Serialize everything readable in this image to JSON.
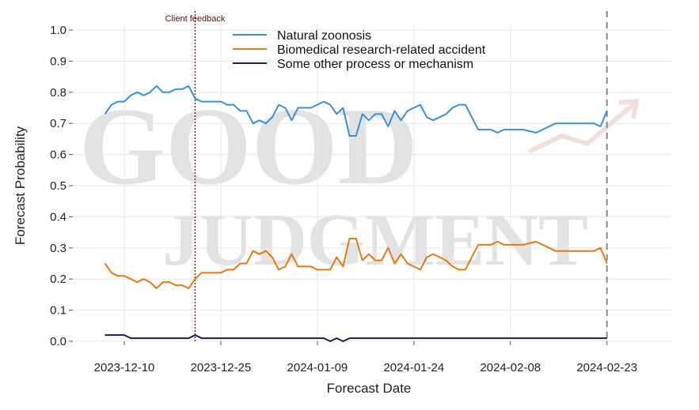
{
  "chart_data": {
    "type": "line",
    "title": "",
    "xlabel": "Forecast Date",
    "ylabel": "Forecast Probability",
    "ylim": [
      0,
      1.0
    ],
    "xlim": [
      "2023-12-02",
      "2024-03-04"
    ],
    "yticks": [
      "0.0",
      "0.1",
      "0.2",
      "0.3",
      "0.4",
      "0.5",
      "0.6",
      "0.7",
      "0.8",
      "0.9",
      "1.0"
    ],
    "xticks": [
      "2023-12-10",
      "2023-12-25",
      "2024-01-09",
      "2024-01-24",
      "2024-02-08",
      "2024-02-23"
    ],
    "grid": true,
    "legend_position": "top-center",
    "watermark": {
      "line1": "GOOD",
      "line2": "JUDGMENT",
      "color": "#e2e2e2"
    },
    "annotations": [
      {
        "label": "Client feedback",
        "x": "2023-12-21",
        "style": "dotted",
        "color": "#7a2530"
      },
      {
        "label": "",
        "x": "2024-02-23",
        "style": "dashed",
        "color": "#888888"
      }
    ],
    "series": [
      {
        "name": "Natural zoonosis",
        "color": "#3a8fd9",
        "points": [
          [
            "2023-12-07",
            0.73
          ],
          [
            "2023-12-08",
            0.76
          ],
          [
            "2023-12-09",
            0.77
          ],
          [
            "2023-12-10",
            0.77
          ],
          [
            "2023-12-11",
            0.79
          ],
          [
            "2023-12-12",
            0.8
          ],
          [
            "2023-12-13",
            0.79
          ],
          [
            "2023-12-14",
            0.8
          ],
          [
            "2023-12-15",
            0.82
          ],
          [
            "2023-12-16",
            0.8
          ],
          [
            "2023-12-17",
            0.8
          ],
          [
            "2023-12-18",
            0.81
          ],
          [
            "2023-12-19",
            0.81
          ],
          [
            "2023-12-20",
            0.82
          ],
          [
            "2023-12-21",
            0.78
          ],
          [
            "2023-12-22",
            0.77
          ],
          [
            "2023-12-23",
            0.77
          ],
          [
            "2023-12-24",
            0.77
          ],
          [
            "2023-12-25",
            0.77
          ],
          [
            "2023-12-26",
            0.76
          ],
          [
            "2023-12-27",
            0.76
          ],
          [
            "2023-12-28",
            0.74
          ],
          [
            "2023-12-29",
            0.74
          ],
          [
            "2023-12-30",
            0.7
          ],
          [
            "2023-12-31",
            0.71
          ],
          [
            "2024-01-01",
            0.7
          ],
          [
            "2024-01-02",
            0.72
          ],
          [
            "2024-01-03",
            0.76
          ],
          [
            "2024-01-04",
            0.75
          ],
          [
            "2024-01-05",
            0.71
          ],
          [
            "2024-01-06",
            0.75
          ],
          [
            "2024-01-07",
            0.75
          ],
          [
            "2024-01-08",
            0.75
          ],
          [
            "2024-01-09",
            0.76
          ],
          [
            "2024-01-10",
            0.77
          ],
          [
            "2024-01-11",
            0.76
          ],
          [
            "2024-01-12",
            0.73
          ],
          [
            "2024-01-13",
            0.75
          ],
          [
            "2024-01-14",
            0.66
          ],
          [
            "2024-01-15",
            0.66
          ],
          [
            "2024-01-16",
            0.73
          ],
          [
            "2024-01-17",
            0.71
          ],
          [
            "2024-01-18",
            0.73
          ],
          [
            "2024-01-19",
            0.73
          ],
          [
            "2024-01-20",
            0.69
          ],
          [
            "2024-01-21",
            0.74
          ],
          [
            "2024-01-22",
            0.71
          ],
          [
            "2024-01-23",
            0.74
          ],
          [
            "2024-01-24",
            0.75
          ],
          [
            "2024-01-25",
            0.76
          ],
          [
            "2024-01-26",
            0.72
          ],
          [
            "2024-01-27",
            0.71
          ],
          [
            "2024-01-28",
            0.72
          ],
          [
            "2024-01-29",
            0.73
          ],
          [
            "2024-01-30",
            0.75
          ],
          [
            "2024-01-31",
            0.76
          ],
          [
            "2024-02-01",
            0.76
          ],
          [
            "2024-02-02",
            0.72
          ],
          [
            "2024-02-03",
            0.68
          ],
          [
            "2024-02-05",
            0.68
          ],
          [
            "2024-02-06",
            0.67
          ],
          [
            "2024-02-07",
            0.68
          ],
          [
            "2024-02-10",
            0.68
          ],
          [
            "2024-02-12",
            0.67
          ],
          [
            "2024-02-15",
            0.7
          ],
          [
            "2024-02-19",
            0.7
          ],
          [
            "2024-02-21",
            0.7
          ],
          [
            "2024-02-22",
            0.69
          ],
          [
            "2024-02-23",
            0.74
          ]
        ]
      },
      {
        "name": "Biomedical research-related accident",
        "color": "#e07b12",
        "points": [
          [
            "2023-12-07",
            0.25
          ],
          [
            "2023-12-08",
            0.22
          ],
          [
            "2023-12-09",
            0.21
          ],
          [
            "2023-12-10",
            0.21
          ],
          [
            "2023-12-11",
            0.2
          ],
          [
            "2023-12-12",
            0.19
          ],
          [
            "2023-12-13",
            0.2
          ],
          [
            "2023-12-14",
            0.19
          ],
          [
            "2023-12-15",
            0.17
          ],
          [
            "2023-12-16",
            0.19
          ],
          [
            "2023-12-17",
            0.19
          ],
          [
            "2023-12-18",
            0.18
          ],
          [
            "2023-12-19",
            0.18
          ],
          [
            "2023-12-20",
            0.17
          ],
          [
            "2023-12-21",
            0.2
          ],
          [
            "2023-12-22",
            0.22
          ],
          [
            "2023-12-23",
            0.22
          ],
          [
            "2023-12-24",
            0.22
          ],
          [
            "2023-12-25",
            0.22
          ],
          [
            "2023-12-26",
            0.23
          ],
          [
            "2023-12-27",
            0.23
          ],
          [
            "2023-12-28",
            0.25
          ],
          [
            "2023-12-29",
            0.25
          ],
          [
            "2023-12-30",
            0.29
          ],
          [
            "2023-12-31",
            0.28
          ],
          [
            "2024-01-01",
            0.29
          ],
          [
            "2024-01-02",
            0.27
          ],
          [
            "2024-01-03",
            0.23
          ],
          [
            "2024-01-04",
            0.24
          ],
          [
            "2024-01-05",
            0.28
          ],
          [
            "2024-01-06",
            0.24
          ],
          [
            "2024-01-07",
            0.24
          ],
          [
            "2024-01-08",
            0.24
          ],
          [
            "2024-01-09",
            0.23
          ],
          [
            "2024-01-10",
            0.23
          ],
          [
            "2024-01-11",
            0.23
          ],
          [
            "2024-01-12",
            0.27
          ],
          [
            "2024-01-13",
            0.24
          ],
          [
            "2024-01-14",
            0.33
          ],
          [
            "2024-01-15",
            0.33
          ],
          [
            "2024-01-16",
            0.26
          ],
          [
            "2024-01-17",
            0.28
          ],
          [
            "2024-01-18",
            0.26
          ],
          [
            "2024-01-19",
            0.26
          ],
          [
            "2024-01-20",
            0.3
          ],
          [
            "2024-01-21",
            0.25
          ],
          [
            "2024-01-22",
            0.28
          ],
          [
            "2024-01-23",
            0.25
          ],
          [
            "2024-01-24",
            0.24
          ],
          [
            "2024-01-25",
            0.23
          ],
          [
            "2024-01-26",
            0.27
          ],
          [
            "2024-01-27",
            0.28
          ],
          [
            "2024-01-28",
            0.27
          ],
          [
            "2024-01-29",
            0.26
          ],
          [
            "2024-01-30",
            0.24
          ],
          [
            "2024-01-31",
            0.23
          ],
          [
            "2024-02-01",
            0.23
          ],
          [
            "2024-02-02",
            0.27
          ],
          [
            "2024-02-03",
            0.31
          ],
          [
            "2024-02-05",
            0.31
          ],
          [
            "2024-02-06",
            0.32
          ],
          [
            "2024-02-07",
            0.31
          ],
          [
            "2024-02-10",
            0.31
          ],
          [
            "2024-02-12",
            0.32
          ],
          [
            "2024-02-15",
            0.29
          ],
          [
            "2024-02-19",
            0.29
          ],
          [
            "2024-02-21",
            0.29
          ],
          [
            "2024-02-22",
            0.3
          ],
          [
            "2024-02-23",
            0.25
          ]
        ]
      },
      {
        "name": "Some other process or mechanism",
        "color": "#241656",
        "points": [
          [
            "2023-12-07",
            0.02
          ],
          [
            "2023-12-10",
            0.02
          ],
          [
            "2023-12-11",
            0.01
          ],
          [
            "2023-12-20",
            0.01
          ],
          [
            "2023-12-21",
            0.02
          ],
          [
            "2023-12-22",
            0.01
          ],
          [
            "2024-01-10",
            0.01
          ],
          [
            "2024-01-11",
            0.0
          ],
          [
            "2024-01-12",
            0.01
          ],
          [
            "2024-01-13",
            0.0
          ],
          [
            "2024-01-14",
            0.01
          ],
          [
            "2024-02-23",
            0.01
          ]
        ]
      }
    ]
  }
}
